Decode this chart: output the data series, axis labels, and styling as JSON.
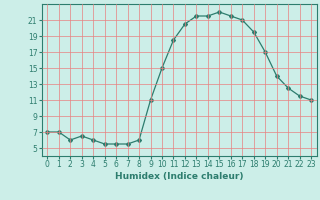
{
  "x": [
    0,
    1,
    2,
    3,
    4,
    5,
    6,
    7,
    8,
    9,
    10,
    11,
    12,
    13,
    14,
    15,
    16,
    17,
    18,
    19,
    20,
    21,
    22,
    23
  ],
  "y": [
    7,
    7,
    6,
    6.5,
    6,
    5.5,
    5.5,
    5.5,
    6,
    11,
    15,
    18.5,
    20.5,
    21.5,
    21.5,
    22,
    21.5,
    21,
    19.5,
    17,
    14,
    12.5,
    11.5,
    11
  ],
  "line_color": "#2d7d6e",
  "marker": "D",
  "marker_size": 2,
  "bg_color": "#cceee8",
  "grid_color": "#e88080",
  "xlabel": "Humidex (Indice chaleur)",
  "xlim": [
    -0.5,
    23.5
  ],
  "ylim": [
    4,
    23
  ],
  "yticks": [
    5,
    7,
    9,
    11,
    13,
    15,
    17,
    19,
    21
  ],
  "xticks": [
    0,
    1,
    2,
    3,
    4,
    5,
    6,
    7,
    8,
    9,
    10,
    11,
    12,
    13,
    14,
    15,
    16,
    17,
    18,
    19,
    20,
    21,
    22,
    23
  ],
  "tick_fontsize": 5.5,
  "xlabel_fontsize": 6.5
}
